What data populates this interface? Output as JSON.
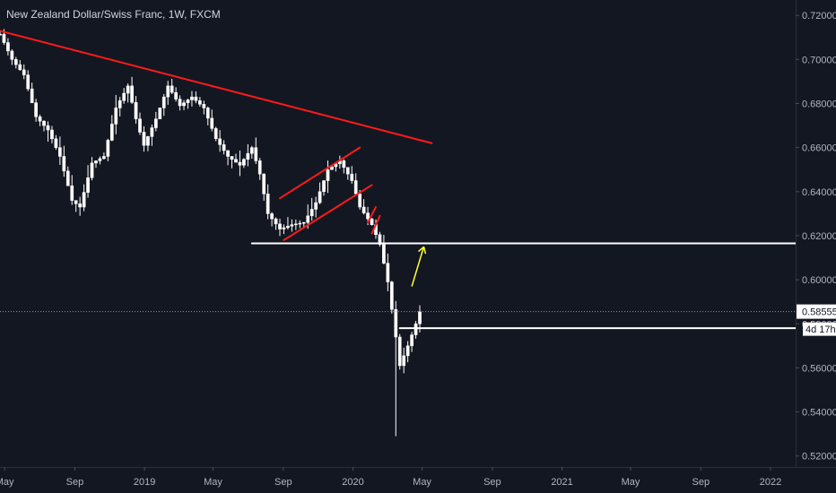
{
  "header": {
    "symbol_title": "New Zealand Dollar/Swiss Franc, 1W, FXCM"
  },
  "colors": {
    "background": "#131722",
    "candle": "#ffffff",
    "trendline": "#ff1a1a",
    "level_line": "#ffffff",
    "arrow": "#ffff33",
    "axis_text": "#b2b5be",
    "last_price_line": "#9598a1"
  },
  "chart_data": {
    "type": "candlestick",
    "y_axis": {
      "position": "right",
      "range": [
        0.515,
        0.727
      ],
      "ticks": [
        0.72,
        0.7,
        0.68,
        0.66,
        0.64,
        0.62,
        0.6,
        0.58,
        0.56,
        0.54,
        0.52
      ],
      "tick_labels": [
        "0.72000",
        "0.70000",
        "0.68000",
        "0.66000",
        "0.64000",
        "0.62000",
        "0.60000",
        "0.58000",
        "0.56000",
        "0.54000",
        "0.52000"
      ]
    },
    "x_axis": {
      "range": [
        "2018-04-23",
        "2022-02-14"
      ],
      "ticks": [
        "2018-05-01",
        "2018-09-01",
        "2019-01-01",
        "2019-05-01",
        "2019-09-01",
        "2020-01-01",
        "2020-05-01",
        "2020-09-01",
        "2021-01-01",
        "2021-05-01",
        "2021-09-01",
        "2022-01-01"
      ],
      "tick_labels": [
        "May",
        "Sep",
        "2019",
        "May",
        "Sep",
        "2020",
        "May",
        "Sep",
        "2021",
        "May",
        "Sep",
        "2022"
      ]
    },
    "price_path": [
      [
        "2018-04-23",
        0.7115
      ],
      [
        "2018-05-14",
        0.7
      ],
      [
        "2018-06-04",
        0.693
      ],
      [
        "2018-06-25",
        0.674
      ],
      [
        "2018-07-16",
        0.668
      ],
      [
        "2018-08-06",
        0.656
      ],
      [
        "2018-08-27",
        0.636
      ],
      [
        "2018-09-10",
        0.633
      ],
      [
        "2018-10-01",
        0.653
      ],
      [
        "2018-10-22",
        0.656
      ],
      [
        "2018-11-12",
        0.678
      ],
      [
        "2018-12-03",
        0.688
      ],
      [
        "2018-12-17",
        0.673
      ],
      [
        "2018-12-31",
        0.661
      ],
      [
        "2019-01-21",
        0.673
      ],
      [
        "2019-02-11",
        0.688
      ],
      [
        "2019-03-04",
        0.679
      ],
      [
        "2019-03-25",
        0.683
      ],
      [
        "2019-04-15",
        0.678
      ],
      [
        "2019-05-06",
        0.664
      ],
      [
        "2019-05-27",
        0.656
      ],
      [
        "2019-06-17",
        0.652
      ],
      [
        "2019-07-08",
        0.66
      ],
      [
        "2019-07-22",
        0.648
      ],
      [
        "2019-08-05",
        0.63
      ],
      [
        "2019-08-26",
        0.623
      ],
      [
        "2019-09-16",
        0.625
      ],
      [
        "2019-10-07",
        0.626
      ],
      [
        "2019-10-28",
        0.635
      ],
      [
        "2019-11-18",
        0.65
      ],
      [
        "2019-12-09",
        0.654
      ],
      [
        "2019-12-30",
        0.645
      ],
      [
        "2020-01-13",
        0.633
      ],
      [
        "2020-02-03",
        0.625
      ],
      [
        "2020-02-17",
        0.616
      ],
      [
        "2020-03-02",
        0.599
      ],
      [
        "2020-03-16",
        0.574
      ],
      [
        "2020-03-23",
        0.561
      ],
      [
        "2020-04-06",
        0.57
      ],
      [
        "2020-04-20",
        0.58
      ],
      [
        "2020-04-27",
        0.5855
      ]
    ],
    "crash_low": [
      "2020-03-16",
      0.529
    ],
    "last_price": 0.58555,
    "last_price_label": "0.58555",
    "timer_label": "4d 17h",
    "drawings": {
      "long_trendline": {
        "from": [
          "2018-04-23",
          0.713
        ],
        "to": [
          "2020-05-18",
          0.662
        ]
      },
      "channel_upper": {
        "from": [
          "2019-08-26",
          0.637
        ],
        "to": [
          "2020-01-13",
          0.66
        ]
      },
      "channel_lower": {
        "from": [
          "2019-09-02",
          0.618
        ],
        "to": [
          "2020-02-03",
          0.643
        ]
      },
      "small_segment_1": {
        "from": [
          "2020-01-27",
          0.626
        ],
        "to": [
          "2020-02-10",
          0.633
        ]
      },
      "small_segment_2": {
        "from": [
          "2020-02-03",
          0.621
        ],
        "to": [
          "2020-02-17",
          0.629
        ]
      },
      "resistance_level": {
        "from": [
          "2019-07-08",
          0.6165
        ],
        "to": [
          "2022-02-14",
          0.6165
        ]
      },
      "support_level": {
        "from": [
          "2020-03-23",
          0.578
        ],
        "to": [
          "2022-02-14",
          0.578
        ]
      },
      "arrow": {
        "from": [
          "2020-04-13",
          0.597
        ],
        "to": [
          "2020-05-04",
          0.615
        ]
      }
    }
  }
}
